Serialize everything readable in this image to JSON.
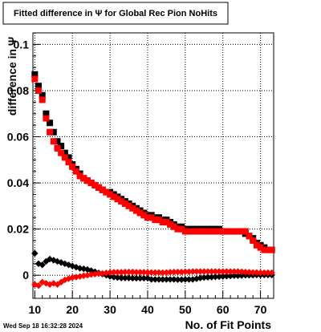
{
  "chart_data": {
    "type": "scatter",
    "title": "Fitted difference in  Ψ  for Global Rec Pion NoHits",
    "xlabel": "No. of Fit Points",
    "ylabel": "difference in  Ψ",
    "xlim": [
      9.5,
      73.5
    ],
    "ylim": [
      -0.01,
      0.105
    ],
    "x_ticks": [
      10,
      20,
      30,
      40,
      50,
      60,
      70
    ],
    "y_ticks": [
      0,
      0.02,
      0.04,
      0.06,
      0.08,
      0.1
    ],
    "y_tick_labels": [
      "0",
      "0.02",
      "0.04",
      "0.06",
      "0.08",
      "0.1"
    ],
    "grid": true,
    "series": [
      {
        "color": "#000000",
        "marker": "square",
        "x": [
          10,
          11,
          12,
          13,
          14,
          15,
          16,
          17,
          18,
          19,
          20,
          21,
          22,
          23,
          24,
          25,
          26,
          27,
          28,
          29,
          30,
          31,
          32,
          33,
          34,
          35,
          36,
          37,
          38,
          39,
          40,
          41,
          42,
          43,
          44,
          45,
          46,
          47,
          48,
          49,
          50,
          51,
          52,
          53,
          54,
          55,
          56,
          57,
          58,
          59,
          60,
          61,
          62,
          63,
          64,
          65,
          66,
          67,
          68,
          69,
          70,
          71,
          72,
          73
        ],
        "y": [
          0.087,
          0.082,
          0.078,
          0.07,
          0.066,
          0.062,
          0.058,
          0.056,
          0.053,
          0.051,
          0.048,
          0.046,
          0.044,
          0.042,
          0.041,
          0.04,
          0.039,
          0.038,
          0.037,
          0.036,
          0.036,
          0.035,
          0.034,
          0.033,
          0.032,
          0.031,
          0.03,
          0.029,
          0.028,
          0.027,
          0.026,
          0.026,
          0.025,
          0.025,
          0.024,
          0.024,
          0.023,
          0.022,
          0.021,
          0.021,
          0.02,
          0.02,
          0.02,
          0.02,
          0.02,
          0.02,
          0.02,
          0.02,
          0.02,
          0.02,
          0.019,
          0.019,
          0.019,
          0.019,
          0.019,
          0.019,
          0.018,
          0.017,
          0.016,
          0.014,
          0.013,
          0.012,
          0.011,
          0.011
        ]
      },
      {
        "color": "#ff0000",
        "marker": "square",
        "x": [
          10,
          11,
          12,
          13,
          14,
          15,
          16,
          17,
          18,
          19,
          20,
          21,
          22,
          23,
          24,
          25,
          26,
          27,
          28,
          29,
          30,
          31,
          32,
          33,
          34,
          35,
          36,
          37,
          38,
          39,
          40,
          41,
          42,
          43,
          44,
          45,
          46,
          47,
          48,
          49,
          50,
          51,
          52,
          53,
          54,
          55,
          56,
          57,
          58,
          59,
          60,
          61,
          62,
          63,
          64,
          65,
          66,
          67,
          68,
          69,
          70,
          71,
          72,
          73
        ],
        "y": [
          0.085,
          0.08,
          0.076,
          0.068,
          0.062,
          0.058,
          0.055,
          0.053,
          0.051,
          0.049,
          0.047,
          0.045,
          0.043,
          0.042,
          0.041,
          0.04,
          0.039,
          0.038,
          0.037,
          0.036,
          0.035,
          0.034,
          0.033,
          0.032,
          0.031,
          0.03,
          0.029,
          0.028,
          0.027,
          0.026,
          0.025,
          0.025,
          0.024,
          0.024,
          0.023,
          0.023,
          0.022,
          0.021,
          0.02,
          0.02,
          0.019,
          0.019,
          0.019,
          0.019,
          0.019,
          0.019,
          0.019,
          0.019,
          0.019,
          0.019,
          0.019,
          0.019,
          0.019,
          0.019,
          0.019,
          0.019,
          0.019,
          0.017,
          0.015,
          0.013,
          0.012,
          0.011,
          0.011,
          0.011
        ]
      },
      {
        "color": "#000000",
        "marker": "diamond",
        "x": [
          10,
          11,
          12,
          13,
          14,
          15,
          16,
          17,
          18,
          19,
          20,
          21,
          22,
          23,
          24,
          25,
          26,
          27,
          28,
          29,
          30,
          31,
          32,
          33,
          34,
          35,
          36,
          37,
          38,
          39,
          40,
          41,
          42,
          43,
          44,
          45,
          46,
          47,
          48,
          49,
          50,
          51,
          52,
          53,
          54,
          55,
          56,
          57,
          58,
          59,
          60,
          61,
          62,
          63,
          64,
          65,
          66,
          67,
          68,
          69,
          70,
          71,
          72,
          73
        ],
        "y": [
          0.0095,
          0.005,
          0.0045,
          0.006,
          0.007,
          0.0065,
          0.006,
          0.0055,
          0.005,
          0.0045,
          0.004,
          0.0035,
          0.003,
          0.0028,
          0.0025,
          0.002,
          0.0015,
          0.001,
          0.0005,
          0.0,
          -0.0005,
          -0.0008,
          -0.001,
          -0.0012,
          -0.0012,
          -0.0012,
          -0.0013,
          -0.0013,
          -0.0013,
          -0.0013,
          -0.0013,
          -0.0018,
          -0.0018,
          -0.0018,
          -0.0018,
          -0.0018,
          -0.0018,
          -0.0018,
          -0.0019,
          -0.0019,
          -0.0018,
          -0.0018,
          -0.0018,
          -0.0015,
          -0.0012,
          -0.001,
          -0.0009,
          -0.0008,
          -0.0007,
          -0.0006,
          -0.0005,
          -0.0004,
          -0.0003,
          -0.0002,
          -0.0002,
          -0.0001,
          0.0,
          0.0,
          0.0,
          0.0001,
          0.0001,
          0.0001,
          0.0001,
          0.0001
        ]
      },
      {
        "color": "#ff0000",
        "marker": "diamond",
        "x": [
          10,
          11,
          12,
          13,
          14,
          15,
          16,
          17,
          18,
          19,
          20,
          21,
          22,
          23,
          24,
          25,
          26,
          27,
          28,
          29,
          30,
          31,
          32,
          33,
          34,
          35,
          36,
          37,
          38,
          39,
          40,
          41,
          42,
          43,
          44,
          45,
          46,
          47,
          48,
          49,
          50,
          51,
          52,
          53,
          54,
          55,
          56,
          57,
          58,
          59,
          60,
          61,
          62,
          63,
          64,
          65,
          66,
          67,
          68,
          69,
          70,
          71,
          72,
          73
        ],
        "y": [
          -0.004,
          -0.0045,
          -0.003,
          -0.0035,
          -0.004,
          -0.0035,
          -0.004,
          -0.003,
          -0.002,
          -0.0015,
          -0.001,
          -0.0008,
          -0.0005,
          -0.0002,
          0.0,
          0.0003,
          0.0005,
          0.0007,
          0.0008,
          0.001,
          0.0012,
          0.0013,
          0.0013,
          0.0013,
          0.0014,
          0.0014,
          0.0014,
          0.0013,
          0.0013,
          0.0013,
          0.0012,
          0.0012,
          0.0012,
          0.0012,
          0.0011,
          0.0012,
          0.0013,
          0.0014,
          0.0014,
          0.0014,
          0.0015,
          0.0015,
          0.0016,
          0.0016,
          0.0016,
          0.0016,
          0.0016,
          0.0016,
          0.0016,
          0.0016,
          0.0016,
          0.0016,
          0.0016,
          0.0016,
          0.0016,
          0.0015,
          0.0014,
          0.0013,
          0.0012,
          0.0012,
          0.0011,
          0.0011,
          0.0011,
          0.0011
        ]
      }
    ]
  },
  "timestamp": "Wed Sep 18 16:32:28 2024"
}
